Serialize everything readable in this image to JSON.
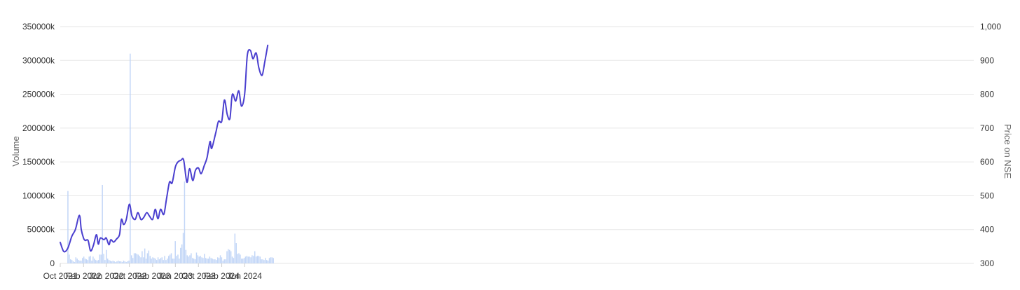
{
  "chart_data": {
    "type": "bar+line",
    "title": "",
    "xlabel": "",
    "ylabel": "Volume",
    "y2label": "Price on NSE",
    "ylim": [
      0,
      350000
    ],
    "y2lim": [
      300,
      1000
    ],
    "grid": true,
    "legend": "none",
    "x_ticks": [
      "Oct 2021",
      "Feb 2022",
      "Jun 2022",
      "Oct 2022",
      "Feb 2023",
      "Jun 2023",
      "Oct 2023",
      "Feb 2024",
      "Jun 2024"
    ],
    "y_ticks": [
      {
        "value": 0,
        "label": "0"
      },
      {
        "value": 50000,
        "label": "50000k"
      },
      {
        "value": 100000,
        "label": "100000k"
      },
      {
        "value": 150000,
        "label": "150000k"
      },
      {
        "value": 200000,
        "label": "200000k"
      },
      {
        "value": 250000,
        "label": "250000k"
      },
      {
        "value": 300000,
        "label": "300000k"
      },
      {
        "value": 350000,
        "label": "350000k"
      }
    ],
    "y2_ticks": [
      {
        "value": 300,
        "label": "300"
      },
      {
        "value": 400,
        "label": "400"
      },
      {
        "value": 500,
        "label": "500"
      },
      {
        "value": 600,
        "label": "600"
      },
      {
        "value": 700,
        "label": "700"
      },
      {
        "value": 800,
        "label": "800"
      },
      {
        "value": 900,
        "label": "900"
      },
      {
        "value": 1000,
        "label": "1,000"
      }
    ],
    "colors": {
      "volume": "#c2d6f7",
      "price": "#4a3fcf",
      "grid": "#e6e6e6",
      "text": "#333333",
      "axis_title": "#666666"
    },
    "volume_series": {
      "name": "",
      "start_date": "2021-10-01",
      "interval_days": 7,
      "values": [
        107000,
        13000,
        6000,
        5000,
        3000,
        2000,
        9000,
        7000,
        5000,
        4000,
        4000,
        8000,
        10000,
        7000,
        6000,
        5000,
        10000,
        11000,
        4000,
        10000,
        7000,
        5000,
        4000,
        5000,
        13000,
        13000,
        116000,
        14000,
        5000,
        20000,
        7000,
        5000,
        4000,
        3000,
        4000,
        3000,
        2000,
        3000,
        4000,
        3000,
        3000,
        2000,
        4000,
        3000,
        2000,
        3000,
        4000,
        310000,
        12000,
        8000,
        15000,
        15000,
        14000,
        13000,
        11000,
        9000,
        18000,
        9000,
        22000,
        7000,
        15000,
        19000,
        11000,
        7000,
        9000,
        8000,
        7000,
        5000,
        9000,
        6000,
        8000,
        9000,
        5000,
        11000,
        5000,
        7000,
        11000,
        13000,
        15000,
        7000,
        7000,
        33000,
        11000,
        13000,
        7000,
        23000,
        28000,
        45000,
        121000,
        20000,
        12000,
        10000,
        12000,
        15000,
        8000,
        7000,
        6000,
        16000,
        12000,
        10000,
        11000,
        9000,
        8000,
        14000,
        8000,
        7000,
        7000,
        10000,
        8000,
        7000,
        6000,
        6000,
        5000,
        9000,
        8000,
        12000,
        9000,
        4000,
        6000,
        6000,
        18000,
        21000,
        20000,
        18000,
        10000,
        8000,
        44000,
        30000,
        14000,
        15000,
        13000,
        7000,
        7000,
        8000,
        10000,
        11000,
        10000,
        10000,
        9000,
        12000,
        11000,
        18000,
        10000,
        11000,
        11000,
        10000,
        6000,
        6000,
        5000,
        8000,
        5000,
        4000,
        8000,
        9000,
        9000,
        8000
      ]
    },
    "price_series": {
      "name": "",
      "x": [
        "2021-10-01",
        "2021-10-20",
        "2021-11-10",
        "2021-12-01",
        "2021-12-20",
        "2022-01-10",
        "2022-01-20",
        "2022-02-01",
        "2022-02-10",
        "2022-02-25",
        "2022-03-10",
        "2022-03-25",
        "2022-04-10",
        "2022-04-20",
        "2022-05-01",
        "2022-05-20",
        "2022-06-01",
        "2022-06-15",
        "2022-06-25",
        "2022-07-10",
        "2022-07-25",
        "2022-08-10",
        "2022-08-20",
        "2022-09-01",
        "2022-09-15",
        "2022-10-01",
        "2022-10-15",
        "2022-11-01",
        "2022-11-15",
        "2022-12-01",
        "2022-12-15",
        "2023-01-01",
        "2023-01-15",
        "2023-02-01",
        "2023-02-15",
        "2023-03-01",
        "2023-03-15",
        "2023-04-01",
        "2023-04-15",
        "2023-05-01",
        "2023-05-15",
        "2023-06-01",
        "2023-06-15",
        "2023-07-01",
        "2023-07-15",
        "2023-08-01",
        "2023-08-15",
        "2023-09-01",
        "2023-09-15",
        "2023-10-01",
        "2023-10-15",
        "2023-11-01",
        "2023-11-15",
        "2023-12-01",
        "2023-12-10",
        "2024-01-01",
        "2024-01-15",
        "2024-02-01",
        "2024-02-15",
        "2024-03-01",
        "2024-03-15",
        "2024-03-25",
        "2024-04-01",
        "2024-04-15",
        "2024-05-01",
        "2024-05-15",
        "2024-06-01",
        "2024-06-15",
        "2024-07-01",
        "2024-07-15",
        "2024-08-01",
        "2024-08-15",
        "2024-09-01",
        "2024-09-15",
        "2024-10-01"
      ],
      "values": [
        362,
        335,
        345,
        380,
        400,
        442,
        400,
        375,
        368,
        368,
        337,
        353,
        385,
        357,
        375,
        370,
        375,
        355,
        370,
        363,
        372,
        385,
        430,
        415,
        430,
        475,
        440,
        430,
        450,
        430,
        435,
        450,
        440,
        430,
        460,
        432,
        460,
        445,
        490,
        540,
        538,
        585,
        600,
        605,
        605,
        540,
        580,
        545,
        575,
        582,
        565,
        590,
        612,
        660,
        640,
        688,
        720,
        720,
        783,
        740,
        728,
        790,
        800,
        780,
        810,
        765,
        800,
        915,
        930,
        905,
        922,
        878,
        856,
        895,
        945
      ]
    }
  }
}
